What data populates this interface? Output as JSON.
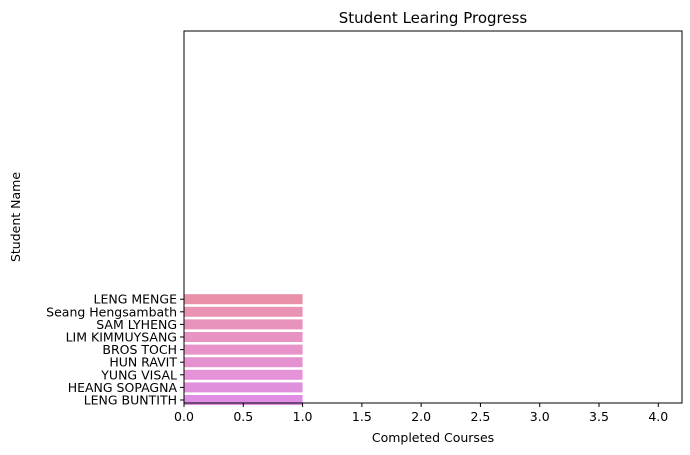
{
  "chart_data": {
    "type": "bar",
    "orientation": "horizontal",
    "title": "Student Learing Progress",
    "xlabel": "Completed Courses",
    "ylabel": "Student Name",
    "xlim": [
      0,
      4.2
    ],
    "xticks": [
      "0.0",
      "0.5",
      "1.0",
      "1.5",
      "2.0",
      "2.5",
      "3.0",
      "3.5",
      "4.0"
    ],
    "grid": false,
    "legend": "none",
    "categories": [
      "LENG MENGE",
      "Seang Hengsambath",
      "SAM LYHENG",
      "LIM KIMMUYSANG",
      "BROS TOCH",
      "HUN RAVIT",
      "YUNG VISAL",
      "HEANG SOPAGNA",
      "LENG BUNTITH"
    ],
    "values": [
      1,
      1,
      1,
      1,
      1,
      1,
      1,
      1,
      1
    ],
    "colors": [
      "#e891a9",
      "#e893b3",
      "#e893bb",
      "#e893c3",
      "#e893c9",
      "#e591cf",
      "#e592d6",
      "#e08fdc",
      "#df8ee3"
    ]
  }
}
